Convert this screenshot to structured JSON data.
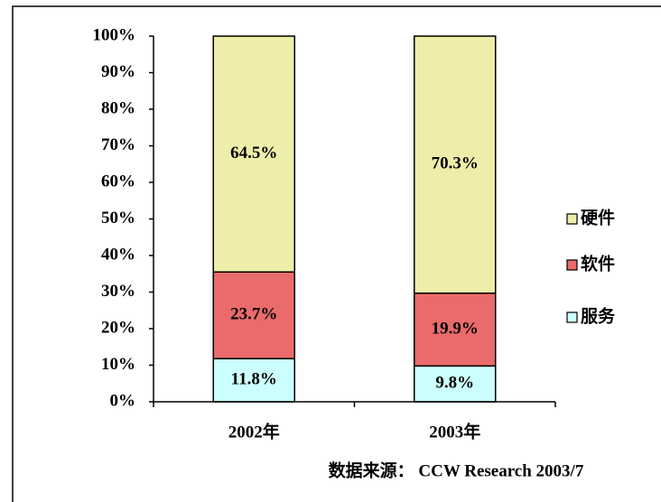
{
  "chart_data": {
    "type": "stacked_bar",
    "categories": [
      "2002年",
      "2003年"
    ],
    "series": [
      {
        "name": "服务",
        "color": "#ccffff",
        "values": [
          11.8,
          9.8
        ],
        "value_labels": [
          "11.8%",
          "9.8%"
        ]
      },
      {
        "name": "软件",
        "color": "#ea6b6b",
        "values": [
          23.7,
          19.9
        ],
        "value_labels": [
          "23.7%",
          "19.9%"
        ]
      },
      {
        "name": "硬件",
        "color": "#eeeeaa",
        "values": [
          64.5,
          70.3
        ],
        "value_labels": [
          "64.5%",
          "70.3%"
        ]
      }
    ],
    "ylim": [
      0,
      100
    ],
    "yticks": [
      {
        "value": 0,
        "label": "0%"
      },
      {
        "value": 10,
        "label": "10%"
      },
      {
        "value": 20,
        "label": "20%"
      },
      {
        "value": 30,
        "label": "30%"
      },
      {
        "value": 40,
        "label": "40%"
      },
      {
        "value": 50,
        "label": "50%"
      },
      {
        "value": 60,
        "label": "60%"
      },
      {
        "value": 70,
        "label": "70%"
      },
      {
        "value": 80,
        "label": "80%"
      },
      {
        "value": 90,
        "label": "90%"
      },
      {
        "value": 100,
        "label": "100%"
      }
    ],
    "legend": "right",
    "source": "数据来源： CCW Research 2003/7"
  }
}
